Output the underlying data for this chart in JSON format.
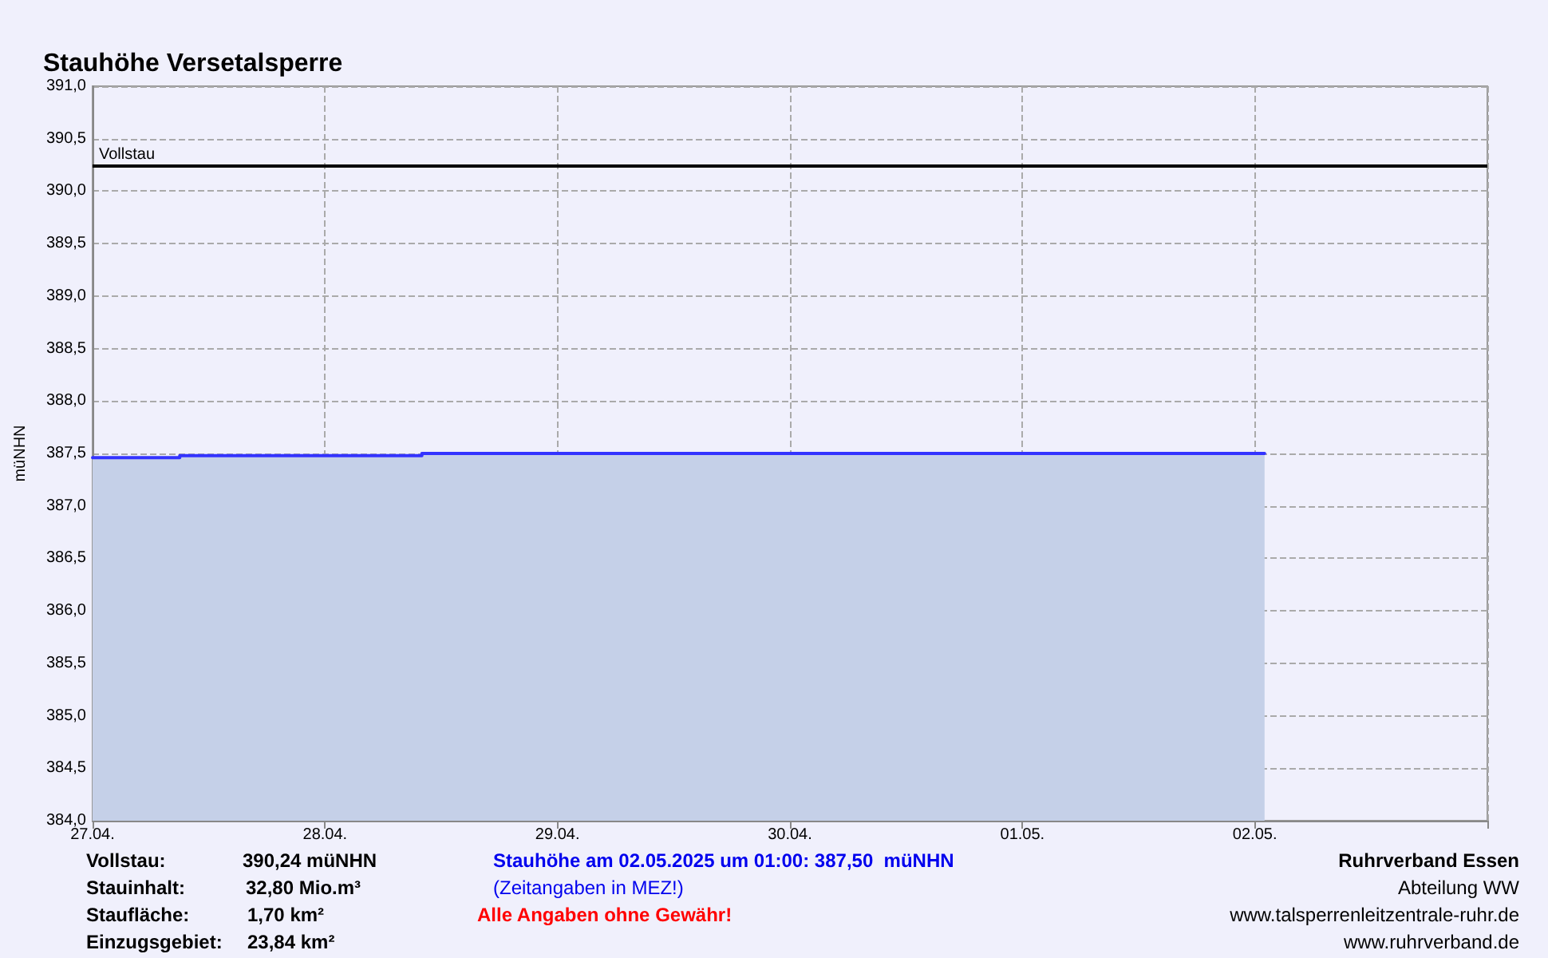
{
  "chart_data": {
    "type": "area",
    "title": "Stauhöhe Versetalsperre",
    "ylabel": "müNHN",
    "x": [
      "2025-04-27T00:00",
      "2025-04-27T09:00",
      "2025-04-28T10:00",
      "2025-05-02T01:00"
    ],
    "series": [
      {
        "color": "#3333ff",
        "values": [
          387.46,
          387.48,
          387.5,
          387.5
        ]
      }
    ],
    "xlim": [
      "2025-04-27T00:00",
      "2025-05-03T00:00"
    ],
    "xticks": [
      {
        "value": "2025-04-27T00:00",
        "label": "27.04."
      },
      {
        "value": "2025-04-28T00:00",
        "label": "28.04."
      },
      {
        "value": "2025-04-29T00:00",
        "label": "29.04."
      },
      {
        "value": "2025-04-30T00:00",
        "label": "30.04."
      },
      {
        "value": "2025-05-01T00:00",
        "label": "01.05."
      },
      {
        "value": "2025-05-02T00:00",
        "label": "02.05."
      }
    ],
    "ylim": [
      384,
      391
    ],
    "yticks": [
      {
        "value": 384,
        "label": "384,0"
      },
      {
        "value": 384.5,
        "label": "384,5"
      },
      {
        "value": 385,
        "label": "385,0"
      },
      {
        "value": 385.5,
        "label": "385,5"
      },
      {
        "value": 386,
        "label": "386,0"
      },
      {
        "value": 386.5,
        "label": "386,5"
      },
      {
        "value": 387,
        "label": "387,0"
      },
      {
        "value": 387.5,
        "label": "387,5"
      },
      {
        "value": 388,
        "label": "388,0"
      },
      {
        "value": 388.5,
        "label": "388,5"
      },
      {
        "value": 389,
        "label": "389,0"
      },
      {
        "value": 389.5,
        "label": "389,5"
      },
      {
        "value": 390,
        "label": "390,0"
      },
      {
        "value": 390.5,
        "label": "390,5"
      },
      {
        "value": 391,
        "label": "391,0"
      }
    ],
    "ref_lines": [
      {
        "axis": "y",
        "value": 390.24,
        "label": "Vollstau",
        "color": "#000000"
      }
    ],
    "grid": true,
    "marker": "none",
    "line_style": "solid",
    "annotations": [
      "Vollstau:",
      "390,24 müNHN",
      "Stauinhalt:",
      "32,80 Mio.m³",
      "Staufläche:",
      "1,70 km²",
      "Einzugsgebiet:",
      "23,84 km²",
      "Stauhöhe am 02.05.2025 um 01:00: 387,50  müNHN",
      "(Zeitangaben in MEZ!)",
      "Alle Angaben ohne Gewähr!",
      "Ruhrverband Essen",
      "Abteilung WW",
      "www.talsperrenleitzentrale-ruhr.de",
      "www.ruhrverband.de"
    ]
  }
}
